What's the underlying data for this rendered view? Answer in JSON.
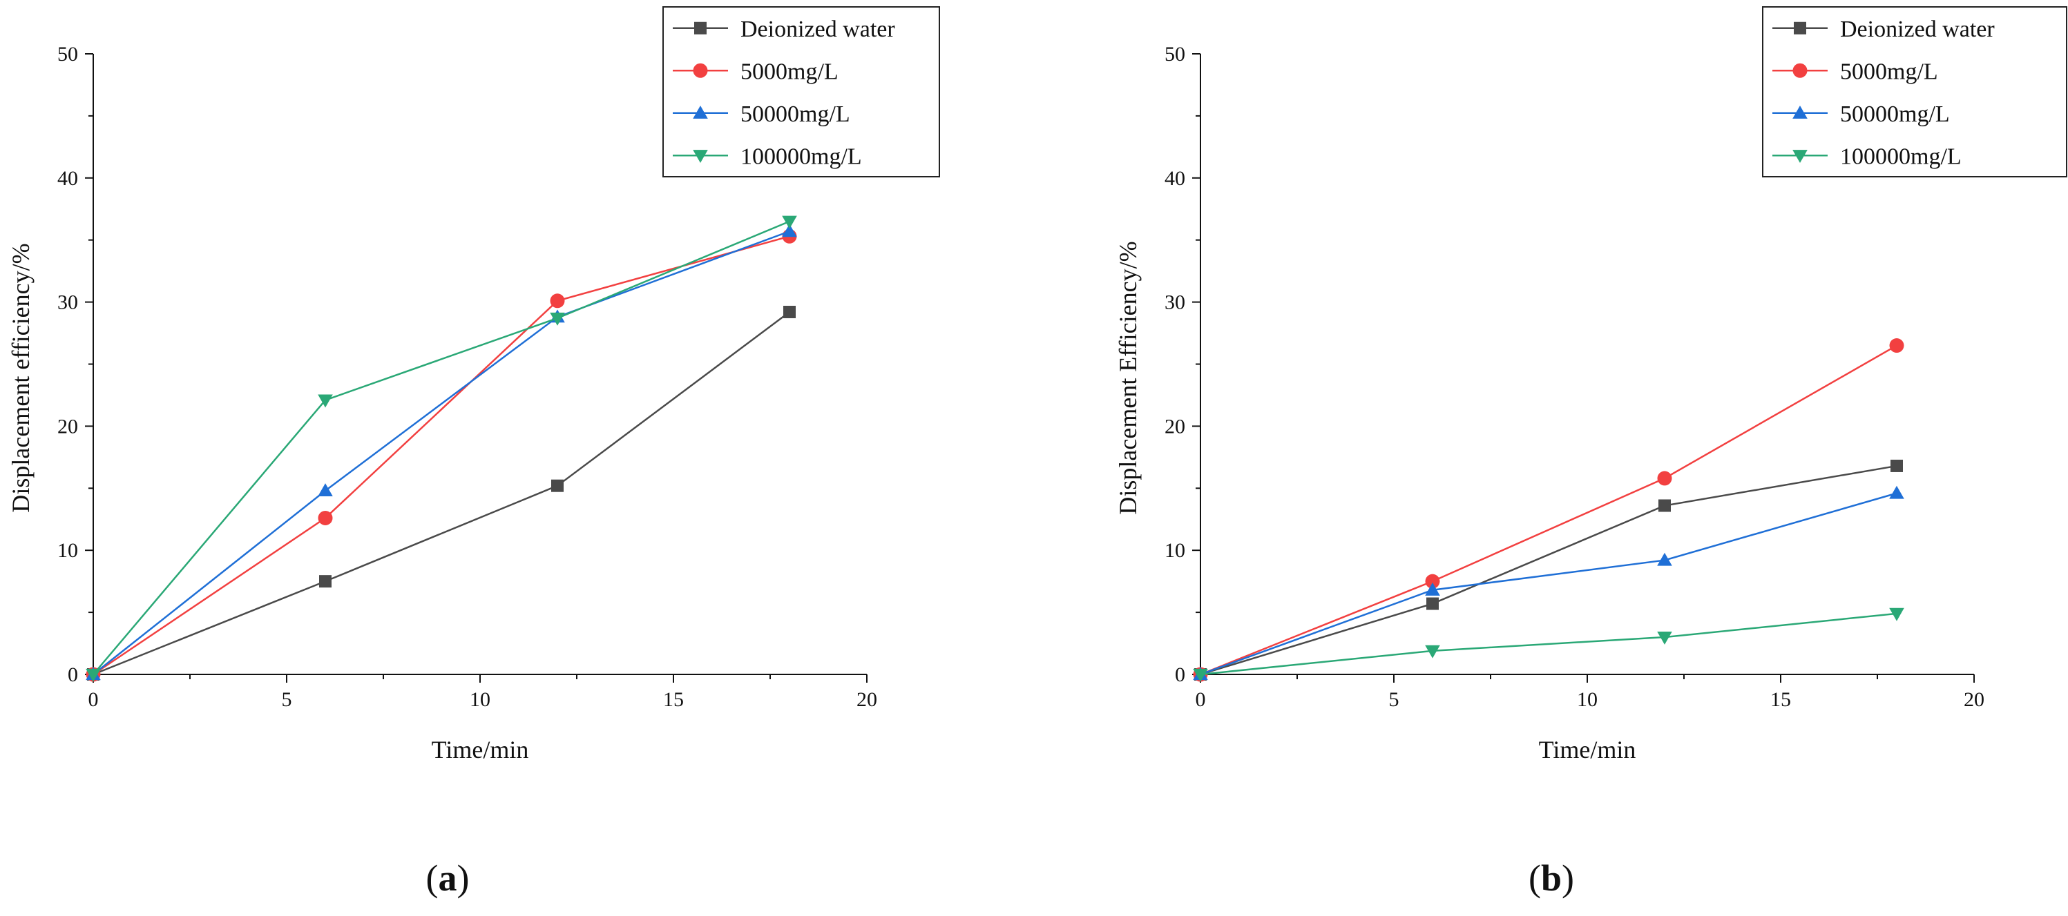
{
  "figure": {
    "captions": [
      "a",
      "b"
    ]
  },
  "chart_data": [
    {
      "type": "line",
      "panel": "a",
      "title": "",
      "xlabel": "Time/min",
      "ylabel": "Displacement efficiency/%",
      "xlim": [
        0,
        20
      ],
      "ylim": [
        0,
        50
      ],
      "xticks": [
        "0",
        "5",
        "10",
        "15",
        "20"
      ],
      "yticks": [
        "0",
        "10",
        "20",
        "30",
        "40",
        "50"
      ],
      "x": [
        0,
        6,
        12,
        18
      ],
      "legend_position": "top-right",
      "series": [
        {
          "name": "Deionized water",
          "marker": "square",
          "color": "#4a4a4a",
          "values": [
            0,
            7.5,
            15.2,
            29.2
          ]
        },
        {
          "name": "5000mg/L",
          "marker": "circle",
          "color": "#f24040",
          "values": [
            0,
            12.6,
            30.1,
            35.3
          ]
        },
        {
          "name": "50000mg/L",
          "marker": "triangle-up",
          "color": "#1f6fd6",
          "values": [
            0,
            14.8,
            28.8,
            35.7
          ]
        },
        {
          "name": "100000mg/L",
          "marker": "triangle-down",
          "color": "#2aa876",
          "values": [
            0,
            22.1,
            28.7,
            36.5
          ]
        }
      ]
    },
    {
      "type": "line",
      "panel": "b",
      "title": "",
      "xlabel": "Time/min",
      "ylabel": "Displacement Efficiency/%",
      "xlim": [
        0,
        20
      ],
      "ylim": [
        0,
        50
      ],
      "xticks": [
        "0",
        "5",
        "10",
        "15",
        "20"
      ],
      "yticks": [
        "0",
        "10",
        "20",
        "30",
        "40",
        "50"
      ],
      "x": [
        0,
        6,
        12,
        18
      ],
      "legend_position": "top-right",
      "series": [
        {
          "name": "Deionized water",
          "marker": "square",
          "color": "#4a4a4a",
          "values": [
            0,
            5.7,
            13.6,
            16.8
          ]
        },
        {
          "name": "5000mg/L",
          "marker": "circle",
          "color": "#f24040",
          "values": [
            0,
            7.5,
            15.8,
            26.5
          ]
        },
        {
          "name": "50000mg/L",
          "marker": "triangle-up",
          "color": "#1f6fd6",
          "values": [
            0,
            6.8,
            9.2,
            14.6
          ]
        },
        {
          "name": "100000mg/L",
          "marker": "triangle-down",
          "color": "#2aa876",
          "values": [
            0,
            1.9,
            3.0,
            4.9
          ]
        }
      ]
    }
  ]
}
